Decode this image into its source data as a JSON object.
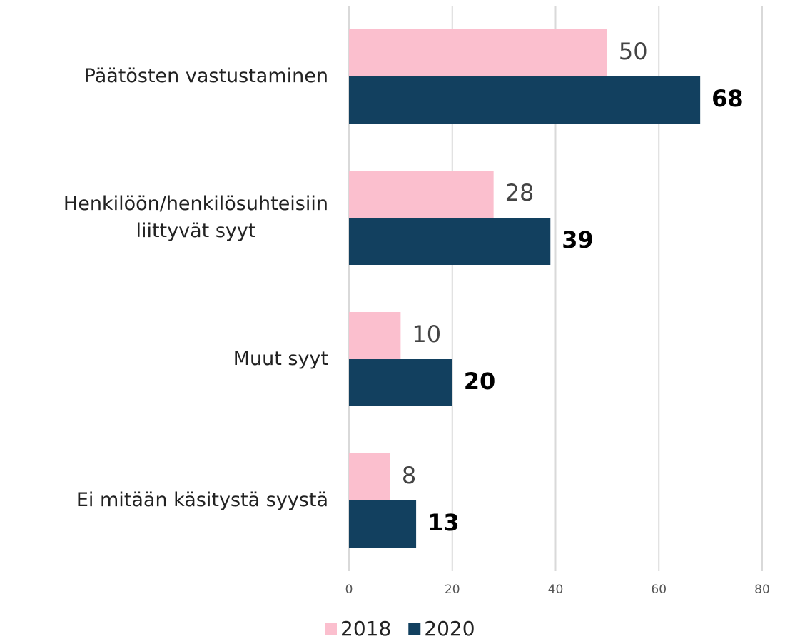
{
  "chart_data": {
    "type": "bar",
    "orientation": "horizontal",
    "categories": [
      "Päätösten vastustaminen",
      "Henkilöön/henkilösuhteisiin\nliittyvät syyt",
      "Muut syyt",
      "Ei mitään käsitystä syystä"
    ],
    "series": [
      {
        "name": "2018",
        "color": "#fbbfce",
        "values": [
          50,
          28,
          10,
          8
        ]
      },
      {
        "name": "2020",
        "color": "#12405f",
        "values": [
          68,
          39,
          20,
          13
        ]
      }
    ],
    "xlim": [
      0,
      80
    ],
    "xticks": [
      0,
      20,
      40,
      60,
      80
    ],
    "grid": true,
    "legend": "bottom"
  }
}
